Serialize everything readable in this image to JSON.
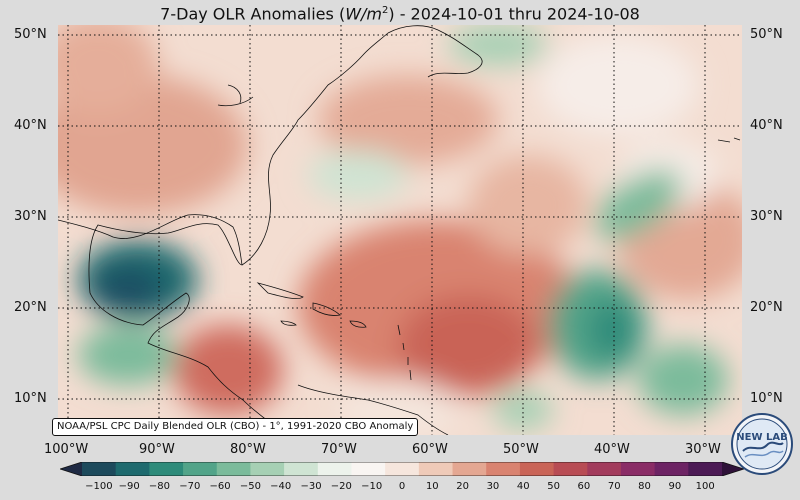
{
  "title": {
    "prefix": "7-Day OLR Anomalies (",
    "unit_base": "W/m",
    "unit_exp": "2",
    "suffix": ") - 2024-10-01 thru 2024-10-08"
  },
  "map": {
    "region": "Tropical and subtropical Atlantic, Gulf of Mexico and Caribbean",
    "lon_range": [
      -100,
      -25
    ],
    "lat_range": [
      7,
      52
    ],
    "lat_labels": [
      "50°N",
      "40°N",
      "30°N",
      "20°N",
      "10°N"
    ],
    "lon_labels": [
      "100°W",
      "90°W",
      "80°W",
      "70°W",
      "60°W",
      "50°W",
      "40°W",
      "30°W"
    ],
    "gridlines": "dotted",
    "colors": {
      "negative_strong": "#1a4f63",
      "negative": "#2e8b7a",
      "negative_weak": "#9fcdb6",
      "neutral": "#f6efe9",
      "positive_weak": "#ecc2ad",
      "positive": "#d98370",
      "positive_strong": "#c35c52"
    }
  },
  "source_note": "NOAA/PSL CPC Daily Blended OLR (CBO) - 1°, 1991-2020 CBO Anomaly",
  "colorbar": {
    "ticks": [
      "−100",
      "−90",
      "−80",
      "−70",
      "−60",
      "−50",
      "−40",
      "−30",
      "−20",
      "−10",
      "0",
      "10",
      "20",
      "30",
      "40",
      "50",
      "60",
      "70",
      "80",
      "90",
      "100"
    ],
    "colors": [
      "#1f2a44",
      "#1d4a5c",
      "#1e6a6e",
      "#2e8b7a",
      "#52a489",
      "#7bbb9b",
      "#a6d0b4",
      "#cfe4d3",
      "#edf3ec",
      "#f9f5f2",
      "#f6e6dd",
      "#efcab8",
      "#e4a792",
      "#d98370",
      "#c96457",
      "#b84c54",
      "#a23b5c",
      "#8a2c66",
      "#6d2364",
      "#4c1a55",
      "#2e1138"
    ]
  },
  "logo": {
    "text": "NEW LAB"
  }
}
